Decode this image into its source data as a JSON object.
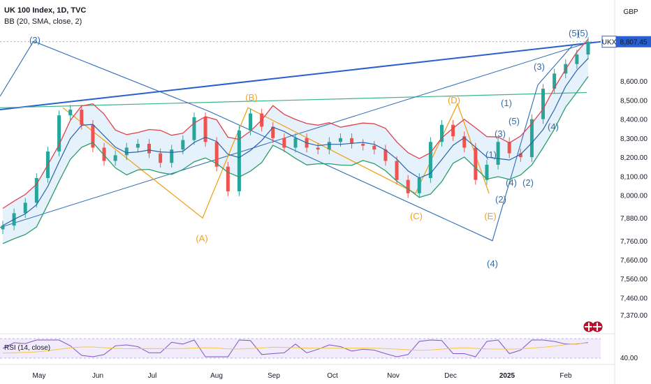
{
  "header": {
    "title": "UK 100 Index, 1D, TVC",
    "indicator": "BB (20, SMA, close, 2)",
    "currency": "GBP",
    "rsi_label": "RSI (14, close)"
  },
  "colors": {
    "bb_upper": "#e0424a",
    "bb_lower": "#2b9d6a",
    "bb_basis": "#2962a8",
    "bb_fill": "#e6f2fb",
    "candle_up": "#26a69a",
    "candle_down": "#ef5350",
    "wave_blue": "#2f6db5",
    "wave_orange": "#f2a21b",
    "trend_blue": "#2a5fd0",
    "trend_green": "#3bb58a",
    "rsi_line": "#7e57c2",
    "rsi_ma": "#f5c842",
    "rsi_bg": "#f2ebfb"
  },
  "chart_data": {
    "type": "line",
    "series": [
      {
        "values": [
          7840,
          7905,
          7960,
          8090,
          8230,
          8420,
          8450,
          8370,
          8250,
          8180,
          8210,
          8250,
          8270,
          8220,
          8170,
          8240,
          8290,
          8410,
          8280,
          8150,
          8020,
          8340,
          8430,
          8360,
          8300,
          8250,
          8300,
          8250,
          8240,
          8280,
          8300,
          8270,
          8260,
          8240,
          8180,
          8080,
          8010,
          8090,
          8280,
          8370,
          8310,
          8250,
          8080,
          8160,
          8280,
          8220,
          8200,
          8400,
          8560,
          8640,
          8690,
          8740,
          8807.45
        ]
      }
    ],
    "last_price": "8,807.45",
    "symbol_tag": "UKX",
    "y_ticks": [
      "8,600.00",
      "8,500.00",
      "8,400.00",
      "8,300.00",
      "8,200.00",
      "8,100.00",
      "8,000.00",
      "7,880.00",
      "7,760.00",
      "7,660.00",
      "7,560.00",
      "7,460.00",
      "7,370.00"
    ],
    "rsi_tick": "40.00",
    "x_ticks": [
      "May",
      "Jun",
      "Jul",
      "Aug",
      "Sep",
      "Oct",
      "Nov",
      "Dec",
      "2025",
      "Feb"
    ],
    "wave_labels_blue": [
      "(3)",
      "(4)",
      "(5)",
      "(5)",
      "(3)",
      "(1)",
      "(5)",
      "(3)",
      "(4)",
      "(1)",
      "(2)",
      "(4)",
      "(2)"
    ],
    "wave_labels_orange": [
      "(A)",
      "(B)",
      "(C)",
      "(D)",
      "(E)"
    ],
    "grid": false
  }
}
